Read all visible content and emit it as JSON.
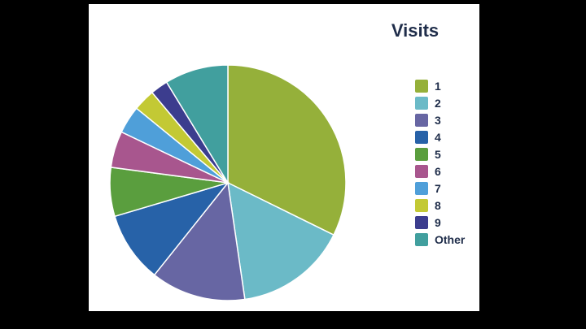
{
  "chart_data": {
    "type": "pie",
    "title": "Visits",
    "legend_position": "right",
    "categories": [
      "1",
      "2",
      "3",
      "4",
      "5",
      "6",
      "7",
      "8",
      "9",
      "Other"
    ],
    "values": [
      32.3,
      15.4,
      13.0,
      9.7,
      6.7,
      5.0,
      3.8,
      3.0,
      2.4,
      8.7
    ],
    "colors": [
      "#95b03a",
      "#6bbac7",
      "#6766a3",
      "#2762a8",
      "#5a9e3e",
      "#a8568e",
      "#4f9fd9",
      "#c3c934",
      "#3c3d8e",
      "#419f9e"
    ],
    "start_angle": "top",
    "direction": "clockwise"
  }
}
